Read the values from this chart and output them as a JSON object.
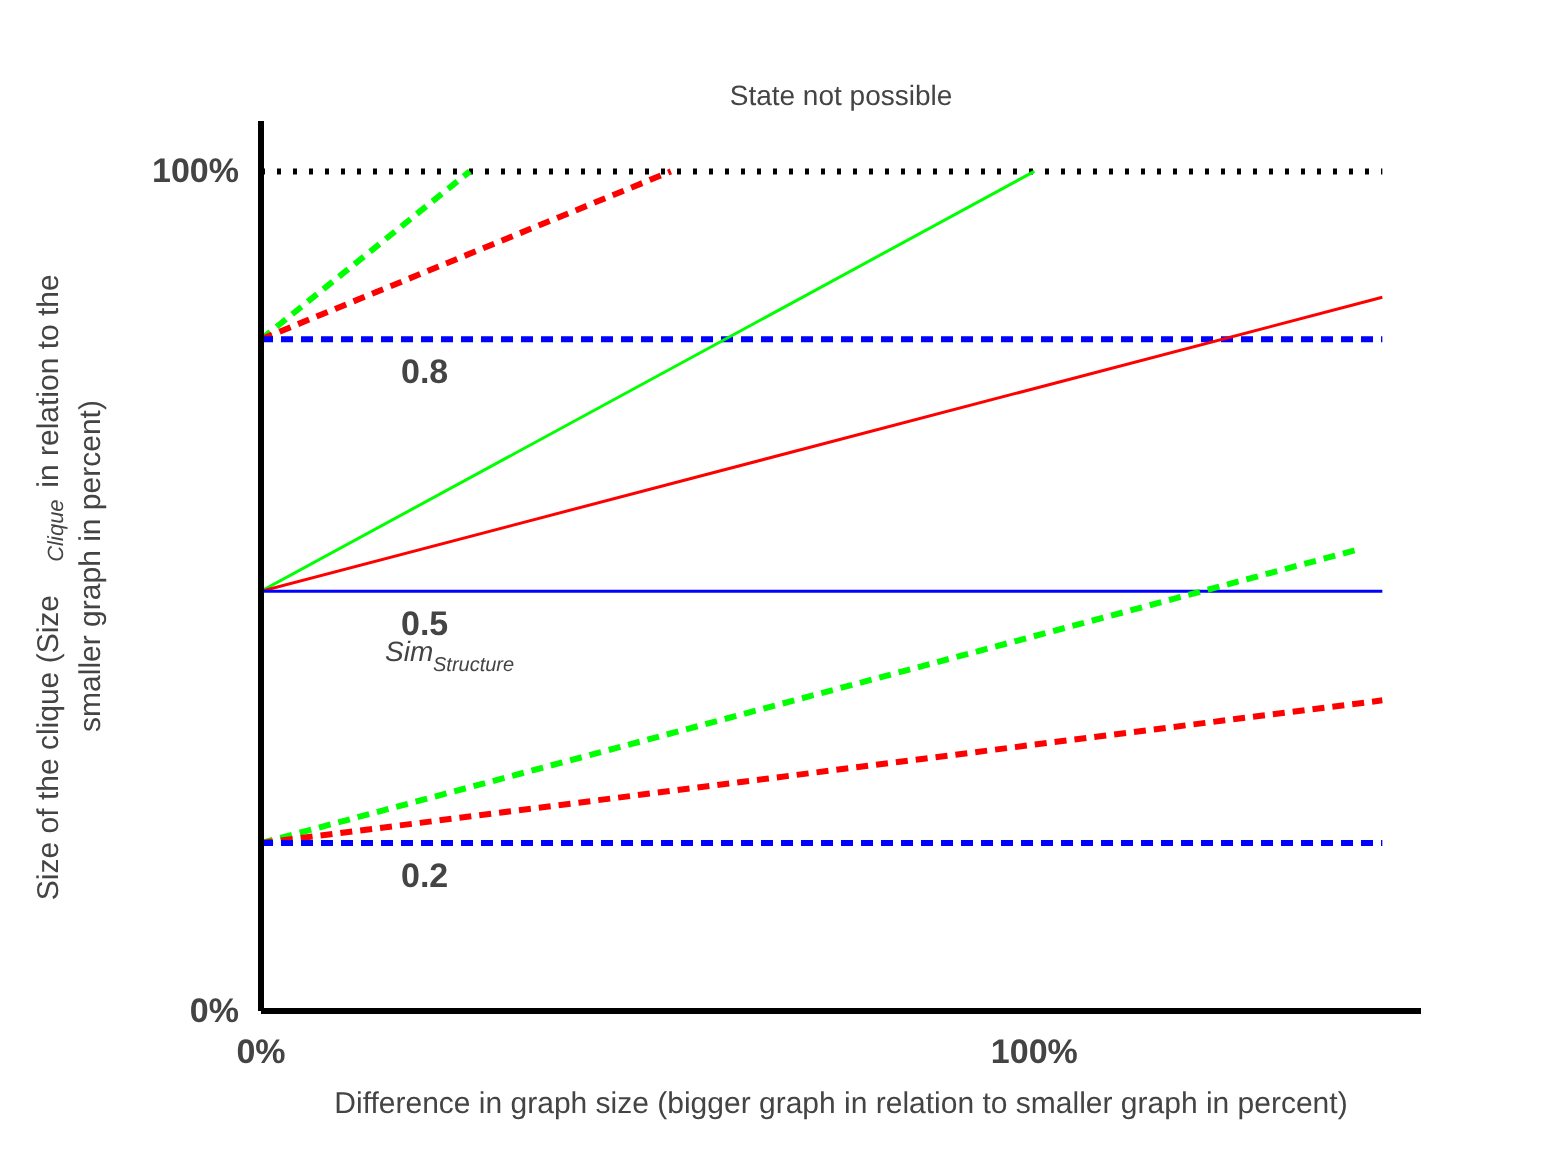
{
  "chart_data": {
    "type": "line",
    "xlabel": "Difference in graph size (bigger graph in relation to smaller graph in percent)",
    "ylabel": "Size of the clique (Size$_{Clique}$ in relation to the smaller graph in percent)",
    "xlim": [
      0,
      150
    ],
    "ylim": [
      0,
      106
    ],
    "xticks": [
      {
        "value": 0,
        "label": "0%"
      },
      {
        "value": 100,
        "label": "100%"
      }
    ],
    "yticks": [
      {
        "value": 0,
        "label": "0%"
      },
      {
        "value": 100,
        "label": "100%"
      }
    ],
    "grid": false,
    "series": [
      {
        "color": "#000000",
        "line_style": "dotted",
        "x": [
          0,
          145
        ],
        "values": [
          100,
          100
        ]
      },
      {
        "color": "#00ff00",
        "line_style": "dashed",
        "x": [
          0,
          27
        ],
        "values": [
          80,
          100
        ]
      },
      {
        "color": "#ff0000",
        "line_style": "dashed",
        "x": [
          0,
          53
        ],
        "values": [
          80,
          100
        ]
      },
      {
        "color": "#0000ff",
        "line_style": "dashed",
        "x": [
          0,
          145
        ],
        "values": [
          80,
          80
        ]
      },
      {
        "color": "#00ff00",
        "line_style": "solid",
        "x": [
          0,
          100
        ],
        "values": [
          50,
          100
        ]
      },
      {
        "color": "#ff0000",
        "line_style": "solid",
        "x": [
          0,
          145
        ],
        "values": [
          50,
          85
        ]
      },
      {
        "color": "#0000ff",
        "line_style": "solid",
        "x": [
          0,
          145
        ],
        "values": [
          50,
          50
        ]
      },
      {
        "color": "#00ff00",
        "line_style": "dashed",
        "x": [
          0,
          142
        ],
        "values": [
          20,
          55
        ]
      },
      {
        "color": "#ff0000",
        "line_style": "dashed",
        "x": [
          0,
          145
        ],
        "values": [
          20,
          37
        ]
      },
      {
        "color": "#0000ff",
        "line_style": "dashed",
        "x": [
          0,
          145
        ],
        "values": [
          20,
          20
        ]
      }
    ],
    "annotations": [
      "State not possible",
      {
        "text": "0.8",
        "y": 80
      },
      {
        "text": "0.5",
        "y": 50
      },
      {
        "text": "Sim$_{Structure}$",
        "y": 50
      },
      {
        "text": "0.2",
        "y": 20
      }
    ]
  }
}
